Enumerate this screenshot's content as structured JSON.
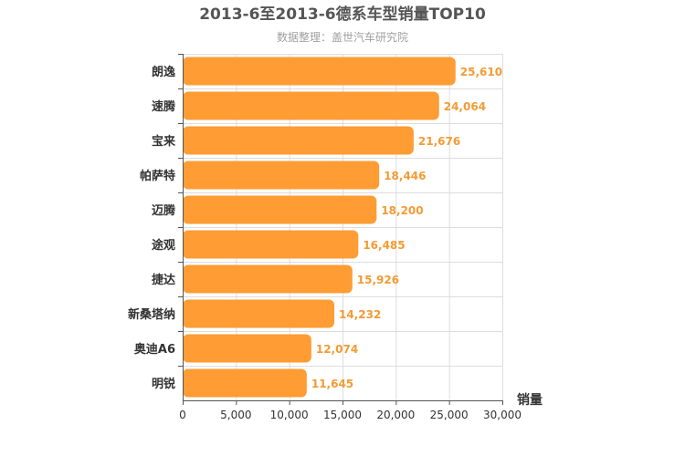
{
  "chart_data": {
    "type": "bar",
    "orientation": "horizontal",
    "title": "2013-6至2013-6德系车型销量TOP10",
    "subtitle": "数据整理：盖世汽车研究院",
    "xlabel": "销量",
    "ylabel": "",
    "xlim": [
      0,
      30000
    ],
    "x_ticks": [
      0,
      5000,
      10000,
      15000,
      20000,
      25000,
      30000
    ],
    "x_tick_labels": [
      "0",
      "5,000",
      "10,000",
      "15,000",
      "20,000",
      "25,000",
      "30,000"
    ],
    "grid": true,
    "bar_color": "#ff9c33",
    "label_color": "#f39b34",
    "categories": [
      "朗逸",
      "速腾",
      "宝来",
      "帕萨特",
      "迈腾",
      "途观",
      "捷达",
      "新桑塔纳",
      "奥迪A6",
      "明锐"
    ],
    "values": [
      25610,
      24064,
      21676,
      18446,
      18200,
      16485,
      15926,
      14232,
      12074,
      11645
    ],
    "value_labels": [
      "25,610",
      "24,064",
      "21,676",
      "18,446",
      "18,200",
      "16,485",
      "15,926",
      "14,232",
      "12,074",
      "11,645"
    ]
  }
}
